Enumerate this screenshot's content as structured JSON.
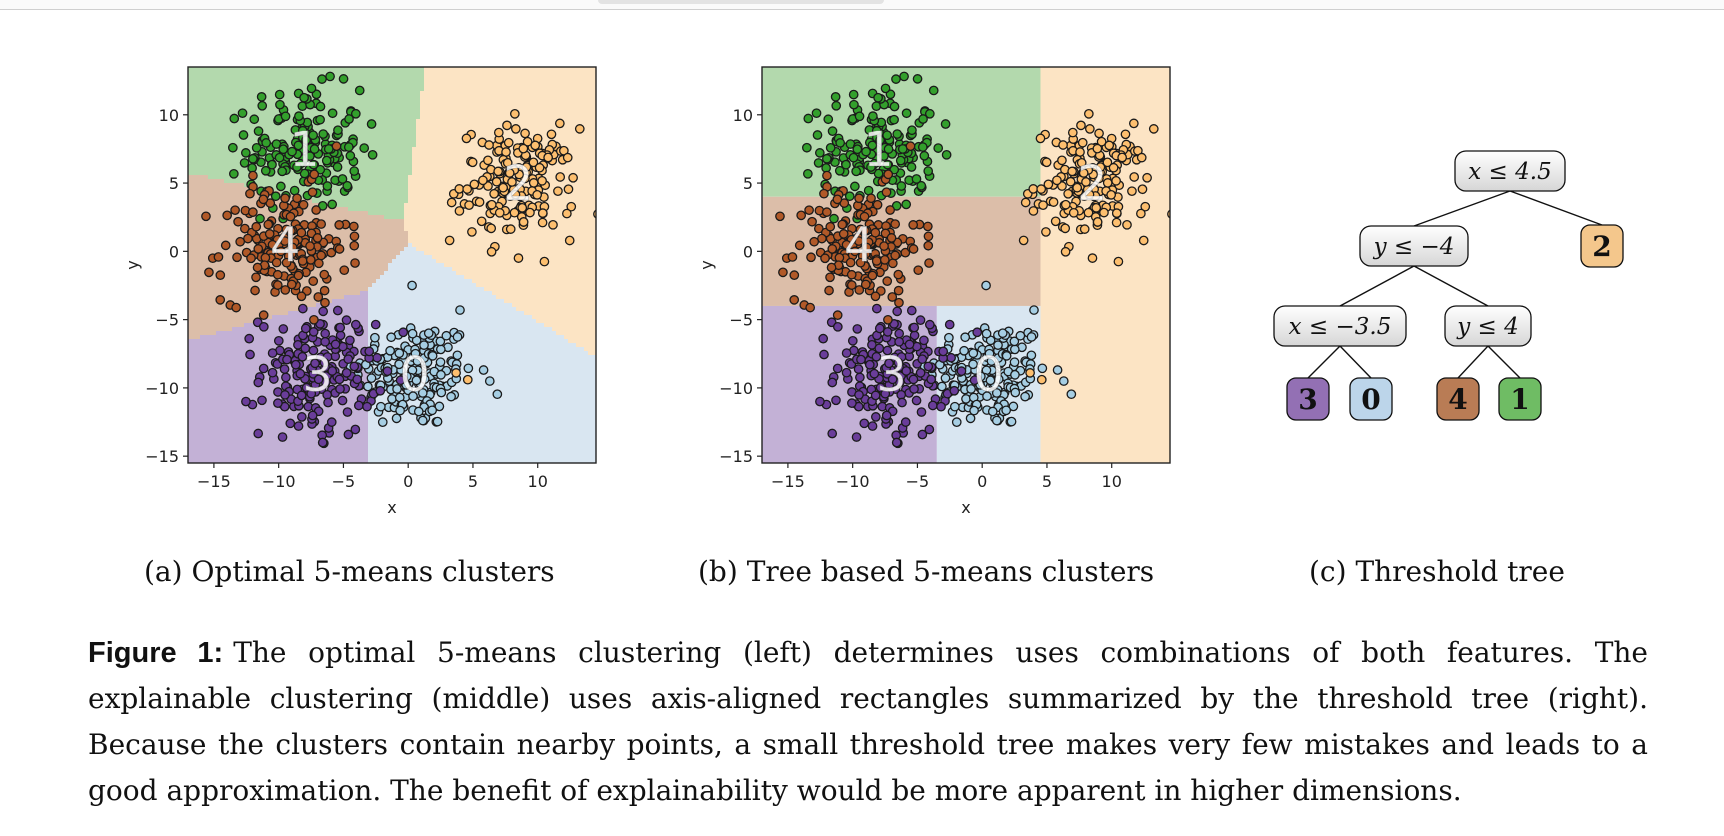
{
  "subfigures": [
    {
      "label": "(a)",
      "caption": "Optimal 5-means clusters"
    },
    {
      "label": "(b)",
      "caption": "Tree based 5-means clusters"
    },
    {
      "label": "(c)",
      "caption": "Threshold tree"
    }
  ],
  "figure": {
    "label": "Figure 1:",
    "text": "The optimal 5-means clustering (left) determines uses combinations of both features. The explainable clustering (middle) uses axis-aligned rectangles summarized by the threshold tree (right). Because the clusters contain nearby points, a small threshold tree makes very few mistakes and leads to a good approximation. The benefit of explainability would be more apparent in higher dimensions."
  },
  "chart_data": [
    {
      "type": "scatter",
      "panel": "a",
      "xlabel": "x",
      "ylabel": "y",
      "xlim": [
        -17,
        14.5
      ],
      "ylim": [
        -15.5,
        13.5
      ],
      "xticks": [
        -15,
        -10,
        -5,
        0,
        5,
        10
      ],
      "yticks": [
        -15,
        -10,
        -5,
        0,
        5,
        10
      ],
      "grid": false,
      "clusters": [
        {
          "name": "0",
          "center": [
            0.5,
            -9
          ],
          "std": [
            2.3,
            2.0
          ],
          "n": 180,
          "color": "#a6cee3",
          "region_color": "#d9e6f1"
        },
        {
          "name": "1",
          "center": [
            -8,
            7.5
          ],
          "std": [
            2.2,
            2.2
          ],
          "n": 180,
          "color": "#33a02c",
          "region_color": "#b3d9ad"
        },
        {
          "name": "2",
          "center": [
            8.5,
            5
          ],
          "std": [
            2.2,
            2.0
          ],
          "n": 180,
          "color": "#fdbf6f",
          "region_color": "#fce4c4"
        },
        {
          "name": "3",
          "center": [
            -7,
            -9
          ],
          "std": [
            2.2,
            2.3
          ],
          "n": 180,
          "color": "#6a3d9a",
          "region_color": "#c3b1d6"
        },
        {
          "name": "4",
          "center": [
            -9.5,
            0.5
          ],
          "std": [
            2.4,
            2.1
          ],
          "n": 180,
          "color": "#b15928",
          "region_color": "#dcbea9"
        }
      ],
      "outliers": [
        {
          "x": 3.2,
          "y": 0.8,
          "cluster": "2"
        },
        {
          "x": 0.3,
          "y": -2.5,
          "cluster": "0"
        },
        {
          "x": 4.0,
          "y": -4.3,
          "cluster": "0"
        },
        {
          "x": 6.3,
          "y": -9.5,
          "cluster": "0"
        },
        {
          "x": -9.7,
          "y": -13.6,
          "cluster": "3"
        },
        {
          "x": -6.6,
          "y": -14.0,
          "cluster": "3"
        },
        {
          "x": 3.7,
          "y": -8.9,
          "cluster": "2"
        },
        {
          "x": 4.6,
          "y": -9.4,
          "cluster": "2"
        }
      ]
    },
    {
      "type": "scatter",
      "panel": "b",
      "xlabel": "x",
      "ylabel": "y",
      "xlim": [
        -17,
        14.5
      ],
      "ylim": [
        -15.5,
        13.5
      ],
      "xticks": [
        -15,
        -10,
        -5,
        0,
        5,
        10
      ],
      "yticks": [
        -15,
        -10,
        -5,
        0,
        5,
        10
      ],
      "grid": false,
      "regions": [
        {
          "cluster": "2",
          "x": [
            4.5,
            14.5
          ],
          "y": [
            -15.5,
            13.5
          ]
        },
        {
          "cluster": "1",
          "x": [
            -17,
            4.5
          ],
          "y": [
            4,
            13.5
          ]
        },
        {
          "cluster": "4",
          "x": [
            -17,
            4.5
          ],
          "y": [
            -4,
            4
          ]
        },
        {
          "cluster": "3",
          "x": [
            -17,
            -3.5
          ],
          "y": [
            -15.5,
            -4
          ]
        },
        {
          "cluster": "0",
          "x": [
            -3.5,
            4.5
          ],
          "y": [
            -15.5,
            -4
          ]
        }
      ]
    }
  ],
  "tree": {
    "nodes": [
      {
        "id": "n0",
        "label": "x ≤ 4.5"
      },
      {
        "id": "n1",
        "label": "y ≤ −4"
      },
      {
        "id": "n2",
        "label": "2"
      },
      {
        "id": "n3",
        "label": "x ≤ −3.5"
      },
      {
        "id": "n4",
        "label": "y ≤ 4"
      },
      {
        "id": "l3",
        "label": "3"
      },
      {
        "id": "l0",
        "label": "0"
      },
      {
        "id": "l4",
        "label": "4"
      },
      {
        "id": "l1",
        "label": "1"
      }
    ],
    "leaf_colors": {
      "2": "#f4c78c",
      "3": "#9370b4",
      "0": "#bcd5ea",
      "4": "#b97c55",
      "1": "#6fbc64"
    }
  }
}
